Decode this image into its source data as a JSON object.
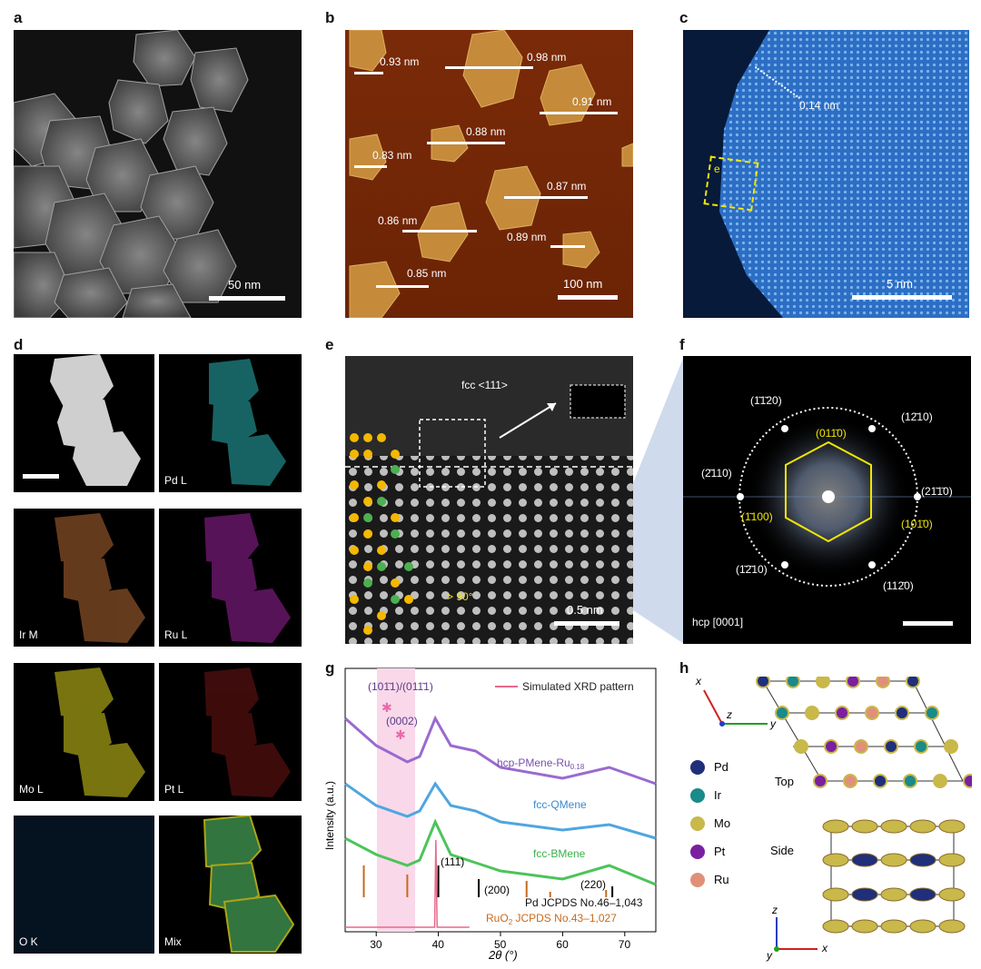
{
  "panels": {
    "a": {
      "letter": "a",
      "scale": "50 nm"
    },
    "b": {
      "letter": "b",
      "scale": "100 nm",
      "heights": [
        "0.93 nm",
        "0.98 nm",
        "0.91 nm",
        "0.88 nm",
        "0.83 nm",
        "0.87 nm",
        "0.86 nm",
        "0.89 nm",
        "0.85 nm"
      ]
    },
    "c": {
      "letter": "c",
      "scale": "5 nm",
      "spacing": "0.14 nm",
      "box": "e"
    },
    "d": {
      "letter": "d",
      "maps": [
        "Pd L",
        "Ir M",
        "Ru L",
        "Mo L",
        "Pt L",
        "O K",
        "Mix"
      ]
    },
    "e": {
      "letter": "e",
      "phase": "fcc <111>",
      "angle": "> 90°",
      "scale": "0.5 nm"
    },
    "f": {
      "letter": "f",
      "zone": "hcp [0001]",
      "outer": [
        "(1̄1̄20)",
        "(12̄10)",
        "(2̄110)",
        "(21̄1̄0)",
        "(1̄2̄10)",
        "(112̄0)"
      ],
      "inner": [
        "(011̄0)",
        "(1̄100)",
        "(101̄0)"
      ]
    },
    "g": {
      "letter": "g",
      "peak_label_1": "(101̄1)/(011̄1)",
      "peak_label_2": "(0002)",
      "legend": "Simulated XRD pattern",
      "curves": [
        "hcp-PMene-Ru",
        "fcc-QMene",
        "fcc-BMene"
      ],
      "curve_sub": "0.18",
      "fcc_peaks": [
        "(111)",
        "(200)",
        "(220)"
      ],
      "ref1": "Pd JCPDS No.46–1,043",
      "ref2": "RuO",
      "ref2_sub": "2",
      "ref2_rest": " JCPDS No.43–1,027",
      "xlabel": "2θ (°)",
      "ylabel": "Intensity (a.u.)",
      "xticks": [
        "30",
        "40",
        "50",
        "60",
        "70"
      ]
    },
    "h": {
      "letter": "h",
      "top": "Top",
      "side": "Side",
      "legend": [
        "Pd",
        "Ir",
        "Mo",
        "Pt",
        "Ru"
      ],
      "legend_colors": [
        "#1f2f7a",
        "#1a8a8a",
        "#c9b84a",
        "#7a1fa0",
        "#e0907a"
      ],
      "axes_top": [
        "x",
        "z",
        "y"
      ],
      "axes_side": [
        "z",
        "y",
        "x"
      ]
    }
  },
  "chart_data": {
    "type": "line",
    "xlabel": "2θ (°)",
    "ylabel": "Intensity (a.u.)",
    "xlim": [
      25,
      75
    ],
    "series": [
      {
        "name": "hcp-PMene-Ru0.18",
        "x": [
          25,
          30,
          35,
          37,
          39.5,
          42,
          46,
          50,
          60,
          67.5,
          75
        ],
        "y": [
          3.5,
          3.0,
          2.7,
          2.8,
          3.5,
          3.0,
          2.9,
          2.6,
          2.4,
          2.6,
          2.3
        ]
      },
      {
        "name": "fcc-QMene",
        "x": [
          25,
          30,
          35,
          37,
          39.5,
          42,
          46,
          50,
          60,
          67.5,
          75
        ],
        "y": [
          2.3,
          1.9,
          1.7,
          1.8,
          2.3,
          1.9,
          1.8,
          1.6,
          1.45,
          1.55,
          1.3
        ]
      },
      {
        "name": "fcc-BMene",
        "x": [
          25,
          30,
          35,
          37,
          39.5,
          42,
          46,
          50,
          60,
          67.5,
          75
        ],
        "y": [
          1.3,
          1.0,
          0.8,
          0.9,
          1.6,
          1.0,
          0.85,
          0.7,
          0.55,
          0.8,
          0.45
        ]
      }
    ]
  }
}
